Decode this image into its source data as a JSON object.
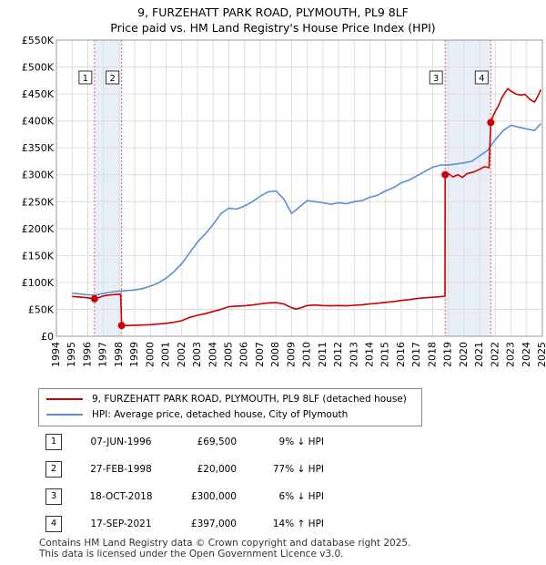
{
  "title_line1": "9, FURZEHATT PARK ROAD, PLYMOUTH, PL9 8LF",
  "title_line2": "Price paid vs. HM Land Registry's House Price Index (HPI)",
  "legend": {
    "property_label": "9, FURZEHATT PARK ROAD, PLYMOUTH, PL9 8LF (detached house)",
    "hpi_label": "HPI: Average price, detached house, City of Plymouth"
  },
  "colors": {
    "property": "#cc0000",
    "hpi": "#5b8fd4",
    "shade": "#e8eef8",
    "marker_line": "#e06060"
  },
  "sales": [
    {
      "num": "1",
      "date": "07-JUN-1996",
      "price": "£69,500",
      "hpi": "9% ↓ HPI"
    },
    {
      "num": "2",
      "date": "27-FEB-1998",
      "price": "£20,000",
      "hpi": "77% ↓ HPI"
    },
    {
      "num": "3",
      "date": "18-OCT-2018",
      "price": "£300,000",
      "hpi": "6% ↓ HPI"
    },
    {
      "num": "4",
      "date": "17-SEP-2021",
      "price": "£397,000",
      "hpi": "14% ↑ HPI"
    }
  ],
  "footer_line1": "Contains HM Land Registry data © Crown copyright and database right 2025.",
  "footer_line2": "This data is licensed under the Open Government Licence v3.0.",
  "chart_data": {
    "type": "line",
    "title": "9, FURZEHATT PARK ROAD, PLYMOUTH, PL9 8LF — Price paid vs. HM Land Registry's House Price Index (HPI)",
    "xlim": [
      1994,
      2025
    ],
    "ylim": [
      0,
      550000
    ],
    "yticks": [
      0,
      50000,
      100000,
      150000,
      200000,
      250000,
      300000,
      350000,
      400000,
      450000,
      500000,
      550000
    ],
    "ytick_labels": [
      "£0",
      "£50K",
      "£100K",
      "£150K",
      "£200K",
      "£250K",
      "£300K",
      "£350K",
      "£400K",
      "£450K",
      "£500K",
      "£550K"
    ],
    "xticks": [
      1994,
      1995,
      1996,
      1997,
      1998,
      1999,
      2000,
      2001,
      2002,
      2003,
      2004,
      2005,
      2006,
      2007,
      2008,
      2009,
      2010,
      2011,
      2012,
      2013,
      2014,
      2015,
      2016,
      2017,
      2018,
      2019,
      2020,
      2021,
      2022,
      2023,
      2024,
      2025
    ],
    "shaded_ranges": [
      [
        1996.43,
        1998.16
      ],
      [
        2018.8,
        2021.71
      ]
    ],
    "sale_markers": [
      {
        "label": "1",
        "x": 1996.43,
        "y": 69500
      },
      {
        "label": "2",
        "x": 1998.16,
        "y": 20000
      },
      {
        "label": "3",
        "x": 2018.8,
        "y": 300000
      },
      {
        "label": "4",
        "x": 2021.71,
        "y": 397000
      }
    ],
    "series": [
      {
        "name": "9, FURZEHATT PARK ROAD, PLYMOUTH, PL9 8LF (detached house)",
        "points": [
          [
            1995.0,
            74000
          ],
          [
            1995.5,
            73000
          ],
          [
            1996.0,
            71500
          ],
          [
            1996.43,
            69500
          ],
          [
            1996.7,
            72000
          ],
          [
            1997.0,
            75000
          ],
          [
            1997.5,
            77000
          ],
          [
            1998.1,
            78000
          ],
          [
            1998.16,
            20000
          ],
          [
            1998.5,
            20000
          ],
          [
            1999.0,
            20500
          ],
          [
            2000.0,
            21500
          ],
          [
            2001.0,
            24000
          ],
          [
            2001.5,
            26000
          ],
          [
            2002.0,
            29000
          ],
          [
            2002.5,
            35000
          ],
          [
            2003.0,
            39000
          ],
          [
            2003.5,
            42000
          ],
          [
            2004.0,
            46000
          ],
          [
            2004.5,
            50000
          ],
          [
            2005.0,
            55000
          ],
          [
            2005.5,
            56000
          ],
          [
            2006.0,
            56500
          ],
          [
            2006.5,
            58000
          ],
          [
            2007.0,
            60000
          ],
          [
            2007.5,
            62000
          ],
          [
            2008.0,
            62500
          ],
          [
            2008.5,
            60000
          ],
          [
            2009.0,
            53000
          ],
          [
            2009.3,
            50500
          ],
          [
            2009.7,
            54000
          ],
          [
            2010.0,
            57000
          ],
          [
            2010.5,
            58000
          ],
          [
            2011.0,
            57000
          ],
          [
            2011.5,
            56500
          ],
          [
            2012.0,
            57000
          ],
          [
            2012.5,
            56500
          ],
          [
            2013.0,
            57500
          ],
          [
            2013.5,
            58500
          ],
          [
            2014.0,
            60000
          ],
          [
            2014.5,
            61500
          ],
          [
            2015.0,
            63000
          ],
          [
            2015.5,
            64500
          ],
          [
            2016.0,
            66500
          ],
          [
            2016.5,
            68000
          ],
          [
            2017.0,
            70000
          ],
          [
            2017.5,
            71500
          ],
          [
            2018.0,
            72500
          ],
          [
            2018.5,
            73500
          ],
          [
            2018.79,
            74500
          ],
          [
            2018.8,
            300000
          ],
          [
            2019.0,
            302000
          ],
          [
            2019.3,
            296000
          ],
          [
            2019.6,
            300000
          ],
          [
            2019.9,
            295000
          ],
          [
            2020.2,
            302000
          ],
          [
            2020.6,
            305000
          ],
          [
            2021.0,
            310000
          ],
          [
            2021.3,
            315000
          ],
          [
            2021.6,
            313000
          ],
          [
            2021.71,
            397000
          ],
          [
            2021.85,
            408000
          ],
          [
            2022.0,
            418000
          ],
          [
            2022.2,
            428000
          ],
          [
            2022.4,
            442000
          ],
          [
            2022.6,
            452000
          ],
          [
            2022.8,
            460000
          ],
          [
            2023.0,
            455000
          ],
          [
            2023.3,
            450000
          ],
          [
            2023.6,
            448000
          ],
          [
            2023.9,
            449000
          ],
          [
            2024.2,
            440000
          ],
          [
            2024.5,
            435000
          ],
          [
            2024.7,
            445000
          ],
          [
            2024.9,
            458000
          ]
        ]
      },
      {
        "name": "HPI: Average price, detached house, City of Plymouth",
        "points": [
          [
            1995.0,
            80000
          ],
          [
            1995.5,
            78500
          ],
          [
            1996.0,
            77000
          ],
          [
            1996.5,
            76500
          ],
          [
            1997.0,
            79500
          ],
          [
            1997.5,
            82000
          ],
          [
            1998.0,
            84000
          ],
          [
            1998.5,
            85000
          ],
          [
            1999.0,
            86000
          ],
          [
            1999.5,
            88500
          ],
          [
            2000.0,
            93000
          ],
          [
            2000.5,
            99000
          ],
          [
            2001.0,
            108000
          ],
          [
            2001.5,
            120000
          ],
          [
            2002.0,
            135000
          ],
          [
            2002.5,
            155000
          ],
          [
            2003.0,
            175000
          ],
          [
            2003.5,
            190000
          ],
          [
            2004.0,
            208000
          ],
          [
            2004.5,
            228000
          ],
          [
            2005.0,
            238000
          ],
          [
            2005.5,
            236000
          ],
          [
            2006.0,
            242000
          ],
          [
            2006.5,
            250000
          ],
          [
            2007.0,
            260000
          ],
          [
            2007.5,
            268000
          ],
          [
            2008.0,
            270000
          ],
          [
            2008.5,
            255000
          ],
          [
            2009.0,
            228000
          ],
          [
            2009.5,
            240000
          ],
          [
            2010.0,
            252000
          ],
          [
            2010.5,
            250000
          ],
          [
            2011.0,
            248000
          ],
          [
            2011.5,
            245000
          ],
          [
            2012.0,
            248000
          ],
          [
            2012.5,
            246000
          ],
          [
            2013.0,
            250000
          ],
          [
            2013.5,
            252000
          ],
          [
            2014.0,
            258000
          ],
          [
            2014.5,
            262000
          ],
          [
            2015.0,
            270000
          ],
          [
            2015.5,
            276000
          ],
          [
            2016.0,
            285000
          ],
          [
            2016.5,
            290000
          ],
          [
            2017.0,
            298000
          ],
          [
            2017.5,
            306000
          ],
          [
            2018.0,
            314000
          ],
          [
            2018.5,
            318000
          ],
          [
            2019.0,
            318000
          ],
          [
            2019.5,
            320000
          ],
          [
            2020.0,
            322000
          ],
          [
            2020.5,
            325000
          ],
          [
            2021.0,
            335000
          ],
          [
            2021.5,
            345000
          ],
          [
            2022.0,
            365000
          ],
          [
            2022.5,
            382000
          ],
          [
            2023.0,
            392000
          ],
          [
            2023.5,
            388000
          ],
          [
            2024.0,
            385000
          ],
          [
            2024.5,
            382000
          ],
          [
            2024.9,
            395000
          ]
        ]
      }
    ]
  }
}
